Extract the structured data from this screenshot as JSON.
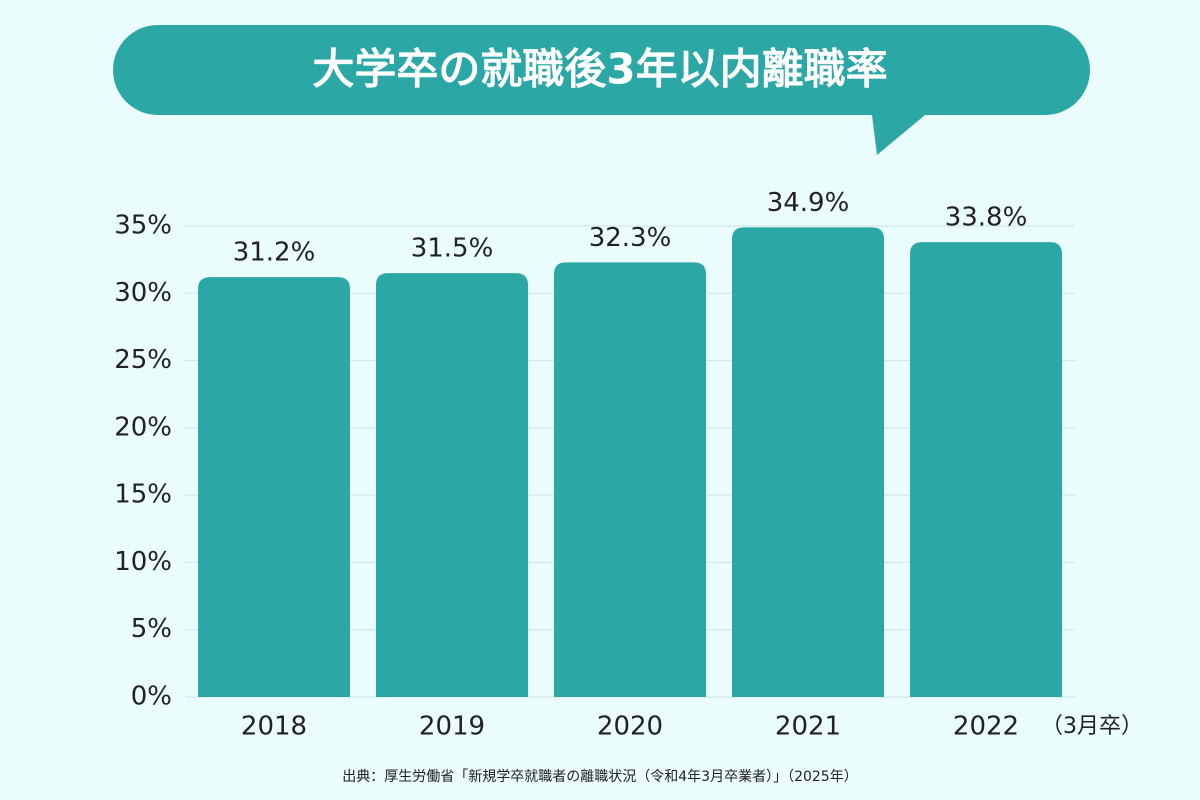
{
  "chart_data": {
    "type": "bar",
    "title": "大学卒の就職後3年以内離職率",
    "categories": [
      "2018",
      "2019",
      "2020",
      "2021",
      "2022"
    ],
    "values": [
      31.2,
      31.5,
      32.3,
      34.9,
      33.8
    ],
    "value_labels": [
      "31.2%",
      "31.5%",
      "32.3%",
      "34.9%",
      "33.8%"
    ],
    "color": "#2ba8a6",
    "ylim": [
      0,
      35
    ],
    "yticks": [
      {
        "value": 0,
        "label": "0%"
      },
      {
        "value": 5,
        "label": "5%"
      },
      {
        "value": 10,
        "label": "10%"
      },
      {
        "value": 15,
        "label": "15%"
      },
      {
        "value": 20,
        "label": "20%"
      },
      {
        "value": 25,
        "label": "25%"
      },
      {
        "value": 30,
        "label": "30%"
      },
      {
        "value": 35,
        "label": "35%"
      }
    ],
    "grid": true,
    "x_unit": "（3月卒）",
    "source": "出典：厚生労働省「新規学卒就職者の離職状況（令和4年3月卒業者）」（2025年）"
  }
}
